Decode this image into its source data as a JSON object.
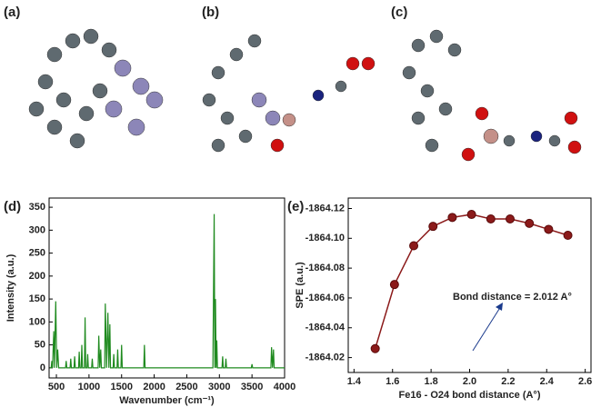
{
  "molecule_panels": [
    "(a)",
    "(b)",
    "(c)"
  ],
  "chart_data": [
    {
      "type": "line",
      "label": "(d)",
      "xlabel": "Wavenumber (cm⁻¹)",
      "ylabel": "Intensity (a.u.)",
      "x": [
        400,
        420,
        430,
        440,
        460,
        470,
        490,
        505,
        520,
        535,
        640,
        650,
        660,
        710,
        720,
        730,
        770,
        780,
        790,
        840,
        850,
        860,
        880,
        890,
        900,
        930,
        940,
        950,
        970,
        980,
        990,
        1040,
        1050,
        1060,
        1140,
        1150,
        1165,
        1180,
        1190,
        1240,
        1250,
        1270,
        1290,
        1305,
        1320,
        1330,
        1370,
        1380,
        1390,
        1430,
        1440,
        1450,
        1490,
        1500,
        1510,
        1840,
        1850,
        1860,
        2900,
        2920,
        2930,
        2940,
        2950,
        2960,
        2970,
        3040,
        3050,
        3060,
        3090,
        3100,
        3110,
        3490,
        3500,
        3510,
        3790,
        3800,
        3815,
        3830,
        3840,
        4000
      ],
      "series": [
        {
          "color": "#1e8a1e",
          "values": [
            0,
            0,
            15,
            0,
            80,
            0,
            145,
            0,
            40,
            0,
            0,
            15,
            0,
            0,
            20,
            0,
            0,
            25,
            0,
            0,
            35,
            0,
            0,
            50,
            0,
            0,
            110,
            0,
            0,
            30,
            0,
            0,
            20,
            0,
            0,
            70,
            0,
            40,
            0,
            0,
            140,
            0,
            120,
            0,
            95,
            0,
            0,
            30,
            0,
            0,
            40,
            0,
            0,
            50,
            0,
            0,
            50,
            0,
            0,
            335,
            0,
            150,
            0,
            60,
            0,
            0,
            25,
            0,
            0,
            20,
            0,
            0,
            8,
            0,
            0,
            45,
            0,
            40,
            0,
            0
          ]
        }
      ],
      "xlim": [
        388,
        4000
      ],
      "ylim": [
        -22,
        370
      ],
      "xticks": [
        500,
        1000,
        1500,
        2000,
        2500,
        3000,
        3500,
        4000
      ],
      "yticks": [
        0,
        50,
        100,
        150,
        200,
        250,
        300,
        350
      ],
      "markers": false
    },
    {
      "type": "line",
      "label": "(e)",
      "xlabel": "Fe16 - O24 bond distance (A°)",
      "ylabel": "SPE (a.u.)",
      "x": [
        1.51,
        1.61,
        1.71,
        1.81,
        1.91,
        2.01,
        2.11,
        2.21,
        2.31,
        2.41,
        2.51
      ],
      "series": [
        {
          "color": "#8b1a1a",
          "values": [
            -1864.026,
            -1864.069,
            -1864.095,
            -1864.108,
            -1864.114,
            -1864.116,
            -1864.113,
            -1864.113,
            -1864.11,
            -1864.106,
            -1864.102
          ]
        }
      ],
      "xlim": [
        1.37,
        2.63
      ],
      "ylim": [
        -1864.01,
        -1864.127
      ],
      "xticks": [
        1.4,
        1.6,
        1.8,
        {
          "value": 2,
          "label": "2.0"
        },
        2.2,
        2.4,
        2.6
      ],
      "yticks": [
        -1864.02,
        -1864.04,
        -1864.06,
        -1864.08,
        {
          "value": -1864.1,
          "label": "-1864.10"
        },
        -1864.12
      ],
      "annotation": "Bond distance = 2.012 A°",
      "markers": true
    }
  ]
}
